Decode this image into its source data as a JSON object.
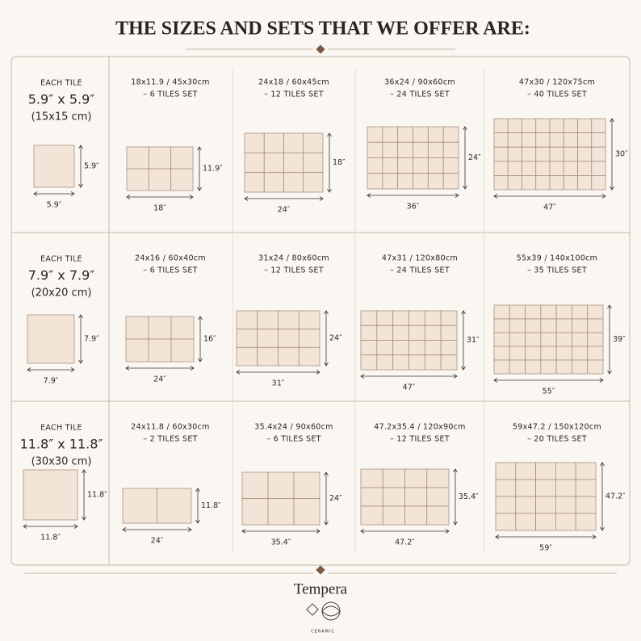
{
  "title": "THE SIZES AND SETS THAT WE OFFER ARE:",
  "rows": [
    {
      "label": "EACH TILE",
      "size": "5.9″ x 5.9″",
      "metric": "(15x15 cm)",
      "width": "5.9″",
      "height": "5.9″",
      "sets": [
        {
          "size": "18x11.9 / 45x30cm",
          "count": "– 6 TILES SET",
          "width": "18″",
          "height": "11.9″"
        },
        {
          "size": "24x18 / 60x45cm",
          "count": "– 12 TILES SET",
          "width": "24″",
          "height": "18″"
        },
        {
          "size": "36x24 / 90x60cm",
          "count": "– 24 TILES SET",
          "width": "36″",
          "height": "24″"
        },
        {
          "size": "47x30 / 120x75cm",
          "count": "– 40 TILES SET",
          "width": "47″",
          "height": "30″"
        }
      ]
    },
    {
      "label": "EACH TILE",
      "size": "7.9″ x 7.9″",
      "metric": "(20x20 cm)",
      "width": "7.9″",
      "height": "7.9″",
      "sets": [
        {
          "size": "24x16 / 60x40cm",
          "count": "– 6 TILES SET",
          "width": "24″",
          "height": "16″"
        },
        {
          "size": "31x24 / 80x60cm",
          "count": "– 12 TILES SET",
          "width": "31″",
          "height": "24″"
        },
        {
          "size": "47x31 / 120x80cm",
          "count": "– 24 TILES SET",
          "width": "47″",
          "height": "31″"
        },
        {
          "size": "55x39 / 140x100cm",
          "count": "– 35 TILES SET",
          "width": "55″",
          "height": "39″"
        }
      ]
    },
    {
      "label": "EACH TILE",
      "size": "11.8″ x 11.8″",
      "metric": "(30x30 cm)",
      "width": "11.8″",
      "height": "11.8″",
      "sets": [
        {
          "size": "24x11.8 / 60x30cm",
          "count": "– 2 TILES SET",
          "width": "24″",
          "height": "11.8″"
        },
        {
          "size": "35.4x24 / 90x60cm",
          "count": "– 6 TILES SET",
          "width": "35.4″",
          "height": "24″"
        },
        {
          "size": "47.2x35.4 / 120x90cm",
          "count": "– 12 TILES SET",
          "width": "47.2″",
          "height": "35.4″"
        },
        {
          "size": "59x47.2 / 150x120cm",
          "count": "– 20 TILES SET",
          "width": "59″",
          "height": "47.2″"
        }
      ]
    }
  ],
  "logo": {
    "name": "Tempera",
    "tagline": "CERAMIC"
  }
}
